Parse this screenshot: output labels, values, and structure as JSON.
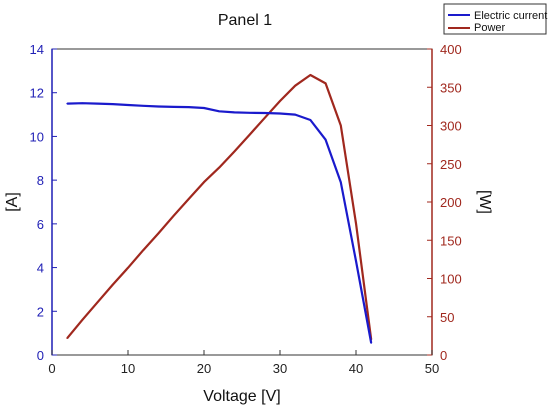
{
  "chart_data": {
    "type": "line",
    "title": "Panel 1",
    "xlabel": "Voltage [V]",
    "ylabel_left": "[A]",
    "ylabel_right": "[W]",
    "xlim": [
      0,
      50
    ],
    "ylim_left": [
      0,
      14
    ],
    "ylim_right": [
      0,
      400
    ],
    "x_ticks": [
      0,
      10,
      20,
      30,
      40,
      50
    ],
    "y_left_ticks": [
      0,
      2,
      4,
      6,
      8,
      10,
      12,
      14
    ],
    "y_right_ticks": [
      0,
      50,
      100,
      150,
      200,
      250,
      300,
      350,
      400
    ],
    "grid": false,
    "legend_position": "top-right-outside",
    "series": [
      {
        "name": "Electric current",
        "axis": "left",
        "color": "#1a1acc",
        "x": [
          2,
          4,
          6,
          8,
          10,
          12,
          14,
          16,
          18,
          20,
          22,
          24,
          26,
          28,
          30,
          32,
          34,
          36,
          38,
          40,
          42
        ],
        "y": [
          11.5,
          11.52,
          11.5,
          11.48,
          11.44,
          11.4,
          11.37,
          11.35,
          11.34,
          11.3,
          11.15,
          11.1,
          11.08,
          11.07,
          11.05,
          11.0,
          10.75,
          9.85,
          7.9,
          4.3,
          0.55
        ]
      },
      {
        "name": "Power",
        "axis": "right",
        "color": "#a0281e",
        "x": [
          2,
          4,
          6,
          8,
          10,
          12,
          14,
          16,
          18,
          20,
          22,
          24,
          26,
          28,
          30,
          32,
          34,
          36,
          38,
          40,
          42
        ],
        "y": [
          22,
          46,
          69,
          92,
          114,
          137,
          159,
          182,
          204,
          226,
          245,
          266,
          288,
          310,
          332,
          352,
          366,
          355,
          300,
          172,
          20
        ]
      }
    ]
  }
}
